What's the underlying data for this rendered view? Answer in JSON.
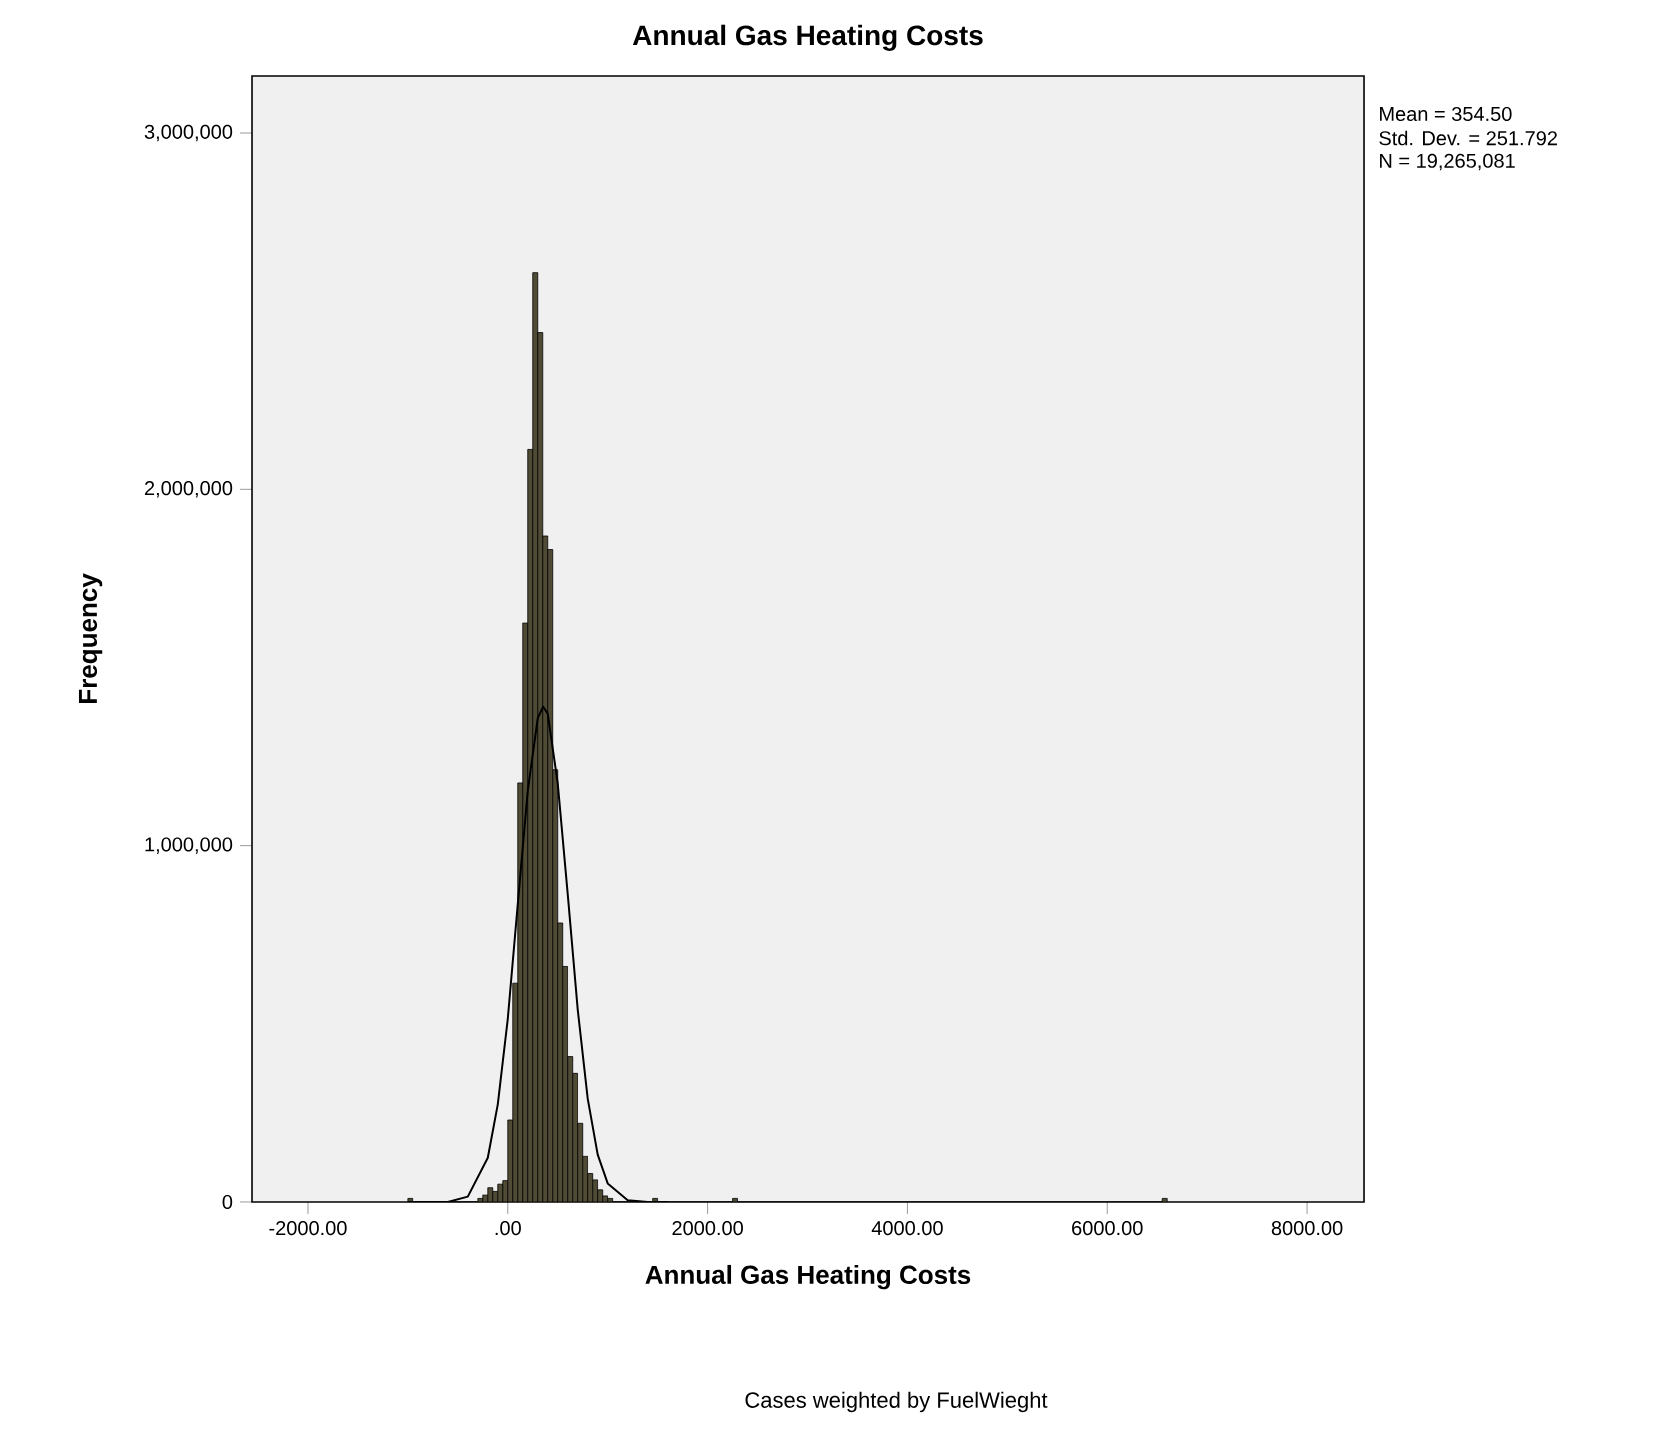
{
  "chart_data": {
    "type": "histogram",
    "title": "Annual Gas Heating Costs",
    "xlabel": "Annual Gas Heating Costs",
    "ylabel": "Frequency",
    "annotations": [
      "Mean = 354.50",
      "Std. Dev. = 251.792",
      "N = 19,265,081",
      "Cases weighted by FuelWieght"
    ],
    "bins": [
      -1000,
      -950,
      -300,
      -250,
      -200,
      -150,
      -100,
      -50,
      0,
      50,
      100,
      150,
      200,
      250,
      300,
      350,
      400,
      450,
      500,
      550,
      600,
      650,
      700,
      750,
      800,
      850,
      900,
      950,
      1000,
      1050,
      1450,
      1500,
      2250,
      2300,
      6550,
      6600
    ],
    "values": [
      10000,
      0,
      10000,
      20000,
      40000,
      30000,
      50000,
      60000,
      230000,
      614000,
      1176000,
      1625000,
      2112000,
      2608000,
      2440000,
      1869000,
      1831000,
      1213000,
      783000,
      661000,
      408000,
      361000,
      221000,
      128000,
      80000,
      62000,
      34000,
      17000,
      10000,
      0,
      10000,
      0,
      10000,
      0,
      10000
    ],
    "color": "#4f4b35",
    "series": [
      {
        "type": "line",
        "color": "#000000",
        "x": [
          -1000,
          -600,
          -400,
          -200,
          -100,
          0,
          100,
          200,
          300,
          354,
          400,
          500,
          600,
          700,
          800,
          900,
          1000,
          1200,
          1400,
          1600
        ],
        "values": [
          0,
          0,
          15000,
          124000,
          274000,
          514000,
          836000,
          1154000,
          1358000,
          1390000,
          1370000,
          1175000,
          864000,
          540000,
          290000,
          133000,
          52000,
          5000,
          0,
          0
        ]
      }
    ],
    "xlim": [
      -2560,
      8570
    ],
    "ylim": [
      0,
      3160000
    ],
    "xticks": [
      {
        "value": -2000,
        "label": "-2000.00"
      },
      {
        "value": 0,
        "label": ".00"
      },
      {
        "value": 2000,
        "label": "2000.00"
      },
      {
        "value": 4000,
        "label": "4000.00"
      },
      {
        "value": 6000,
        "label": "6000.00"
      },
      {
        "value": 8000,
        "label": "8000.00"
      }
    ],
    "yticks": [
      0,
      {
        "value": 1000000,
        "label": "1,000,000"
      },
      {
        "value": 2000000,
        "label": "2,000,000"
      },
      {
        "value": 3000000,
        "label": "3,000,000"
      }
    ],
    "tick_labels": "xy"
  }
}
